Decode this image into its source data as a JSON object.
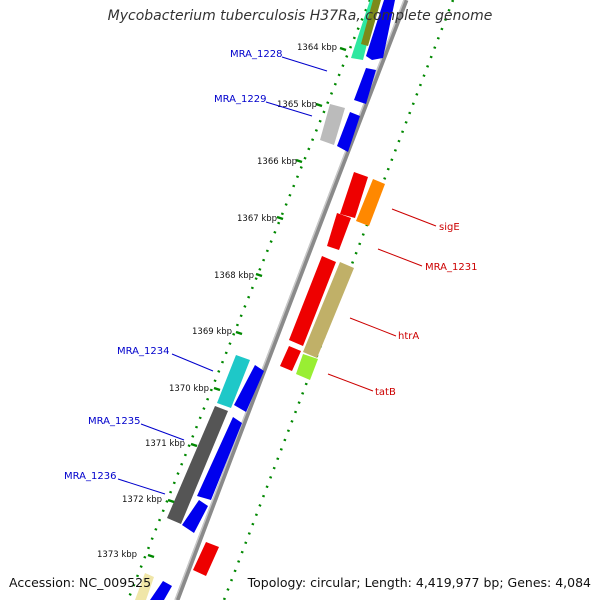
{
  "title": "Mycobacterium tuberculosis H37Ra, complete genome",
  "footer": {
    "accession": "Accession: NC_009525",
    "summary": "Topology: circular; Length: 4,419,977 bp; Genes: 4,084"
  },
  "colors": {
    "forward_label": "#0000cc",
    "reverse_label": "#cc0000",
    "backbone": "#888888",
    "ticks": "#007700"
  },
  "ticks": [
    "1364 kbp",
    "1365 kbp",
    "1366 kbp",
    "1367 kbp",
    "1368 kbp",
    "1369 kbp",
    "1370 kbp",
    "1371 kbp",
    "1372 kbp",
    "1373 kbp"
  ],
  "gene_labels": [
    {
      "text": "MRA_1228",
      "strand": "forward"
    },
    {
      "text": "MRA_1229",
      "strand": "forward"
    },
    {
      "text": "MRA_1234",
      "strand": "forward"
    },
    {
      "text": "MRA_1235",
      "strand": "forward"
    },
    {
      "text": "MRA_1236",
      "strand": "forward"
    },
    {
      "text": "sigE",
      "strand": "reverse"
    },
    {
      "text": "MRA_1231",
      "strand": "reverse"
    },
    {
      "text": "htrA",
      "strand": "reverse"
    },
    {
      "text": "tatB",
      "strand": "reverse"
    }
  ]
}
